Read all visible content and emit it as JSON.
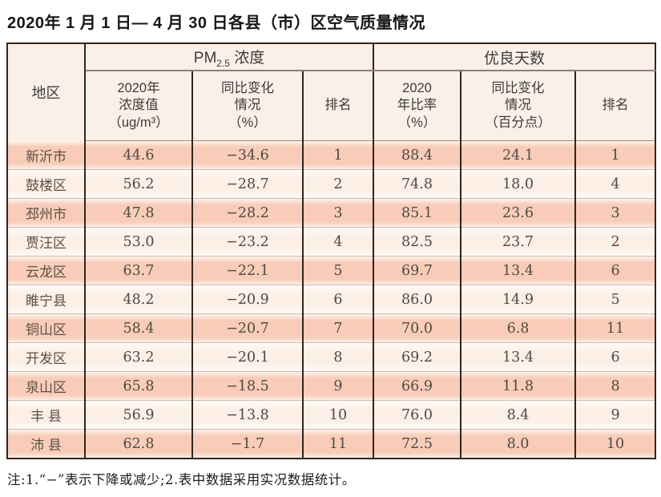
{
  "page": {
    "title": "2020年 1 月 1 日— 4 月 30 日各县（市）区空气质量情况",
    "note": "注:1.“−”表示下降或减少;2.表中数据采用实况数据统计。"
  },
  "table": {
    "region_header": "地区",
    "pm_group": {
      "prefix": "PM",
      "sub": "2.5",
      "suffix": " 浓度"
    },
    "good_group_label": "优良天数",
    "sub_headers": {
      "pm_value": "2020年\n浓度值\n（ug/m³）",
      "pm_change": "同比变化\n情况\n（%）",
      "pm_rank": "排名",
      "good_ratio": "2020\n年比率\n（%）",
      "good_change": "同比变化\n情况\n（百分点）",
      "good_rank": "排名"
    },
    "rows": [
      {
        "region": "新沂市",
        "pm_value": "44.6",
        "pm_change": "−34.6",
        "pm_rank": "1",
        "good_ratio": "88.4",
        "good_change": "24.1",
        "good_rank": "1"
      },
      {
        "region": "鼓楼区",
        "pm_value": "56.2",
        "pm_change": "−28.7",
        "pm_rank": "2",
        "good_ratio": "74.8",
        "good_change": "18.0",
        "good_rank": "4"
      },
      {
        "region": "邳州市",
        "pm_value": "47.8",
        "pm_change": "−28.2",
        "pm_rank": "3",
        "good_ratio": "85.1",
        "good_change": "23.6",
        "good_rank": "3"
      },
      {
        "region": "贾汪区",
        "pm_value": "53.0",
        "pm_change": "−23.2",
        "pm_rank": "4",
        "good_ratio": "82.5",
        "good_change": "23.7",
        "good_rank": "2"
      },
      {
        "region": "云龙区",
        "pm_value": "63.7",
        "pm_change": "−22.1",
        "pm_rank": "5",
        "good_ratio": "69.7",
        "good_change": "13.4",
        "good_rank": "6"
      },
      {
        "region": "睢宁县",
        "pm_value": "48.2",
        "pm_change": "−20.9",
        "pm_rank": "6",
        "good_ratio": "86.0",
        "good_change": "14.9",
        "good_rank": "5"
      },
      {
        "region": "铜山区",
        "pm_value": "58.4",
        "pm_change": "−20.7",
        "pm_rank": "7",
        "good_ratio": "70.0",
        "good_change": "6.8",
        "good_rank": "11"
      },
      {
        "region": "开发区",
        "pm_value": "63.2",
        "pm_change": "−20.1",
        "pm_rank": "8",
        "good_ratio": "69.2",
        "good_change": "13.4",
        "good_rank": "6"
      },
      {
        "region": "泉山区",
        "pm_value": "65.8",
        "pm_change": "−18.5",
        "pm_rank": "9",
        "good_ratio": "66.9",
        "good_change": "11.8",
        "good_rank": "8"
      },
      {
        "region": "丰 县",
        "pm_value": "56.9",
        "pm_change": "−13.8",
        "pm_rank": "10",
        "good_ratio": "76.0",
        "good_change": "8.4",
        "good_rank": "9"
      },
      {
        "region": "沛 县",
        "pm_value": "62.8",
        "pm_change": "−1.7",
        "pm_rank": "11",
        "good_ratio": "72.5",
        "good_change": "8.0",
        "good_rank": "10"
      }
    ]
  },
  "colors": {
    "row_odd_band": "#f8ccb8",
    "row_even_band": "#fcefe6",
    "header_bg": "#fbf0e8",
    "border_dark": "#33251d",
    "border_light": "#c8bcb3"
  }
}
